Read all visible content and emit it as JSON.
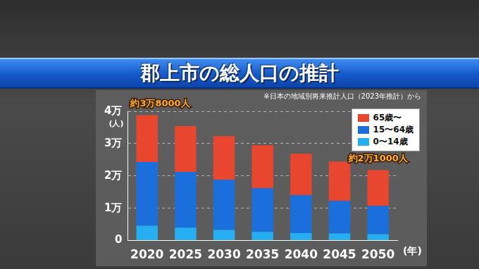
{
  "chart_data": {
    "type": "bar",
    "title": "郡上市の総人口の推計",
    "subtitle": "※日本の地域別将来推計人口（2023年推計）から",
    "x_label": "(年)",
    "y_label": "(人)",
    "categories": [
      "2020",
      "2025",
      "2030",
      "2035",
      "2040",
      "2045",
      "2050"
    ],
    "series": [
      {
        "name": "65歳〜",
        "color": "#e8462e",
        "values": [
          14500,
          14200,
          13500,
          13300,
          12800,
          12100,
          11100
        ]
      },
      {
        "name": "15〜64歳",
        "color": "#1b6fdc",
        "values": [
          19700,
          17200,
          15500,
          13500,
          11800,
          10100,
          8700
        ]
      },
      {
        "name": "0〜14歳",
        "color": "#26aef2",
        "values": [
          4600,
          4000,
          3300,
          2700,
          2300,
          2200,
          2000
        ]
      }
    ],
    "stacked": true,
    "ylim": [
      0,
      40000
    ],
    "yticks": [
      0,
      {
        "value": 10000,
        "label": "1万"
      },
      {
        "value": 20000,
        "label": "2万"
      },
      {
        "value": 30000,
        "label": "3万"
      },
      {
        "value": 40000,
        "label": "4万"
      }
    ],
    "grid": true,
    "legend": "top-right",
    "annotations": [
      {
        "text": "約3万8000人",
        "category": "2020"
      },
      {
        "text": "約2万1000人",
        "category": "2050"
      }
    ]
  }
}
